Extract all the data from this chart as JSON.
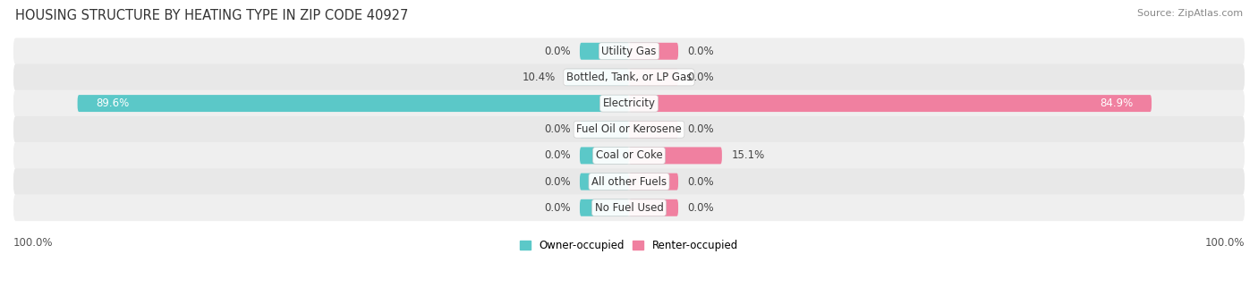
{
  "title": "HOUSING STRUCTURE BY HEATING TYPE IN ZIP CODE 40927",
  "source": "Source: ZipAtlas.com",
  "categories": [
    "Utility Gas",
    "Bottled, Tank, or LP Gas",
    "Electricity",
    "Fuel Oil or Kerosene",
    "Coal or Coke",
    "All other Fuels",
    "No Fuel Used"
  ],
  "owner_values": [
    0.0,
    10.4,
    89.6,
    0.0,
    0.0,
    0.0,
    0.0
  ],
  "renter_values": [
    0.0,
    0.0,
    84.9,
    0.0,
    15.1,
    0.0,
    0.0
  ],
  "owner_color": "#5BC8C8",
  "renter_color": "#F080A0",
  "bar_height": 0.65,
  "row_colors": [
    "#EFEFEF",
    "#E8E8E8"
  ],
  "owner_label": "Owner-occupied",
  "renter_label": "Renter-occupied",
  "axis_max": 100.0,
  "stub_size": 8.0,
  "title_fontsize": 10.5,
  "label_fontsize": 8.5,
  "value_fontsize": 8.5,
  "tick_fontsize": 8.5,
  "source_fontsize": 8
}
